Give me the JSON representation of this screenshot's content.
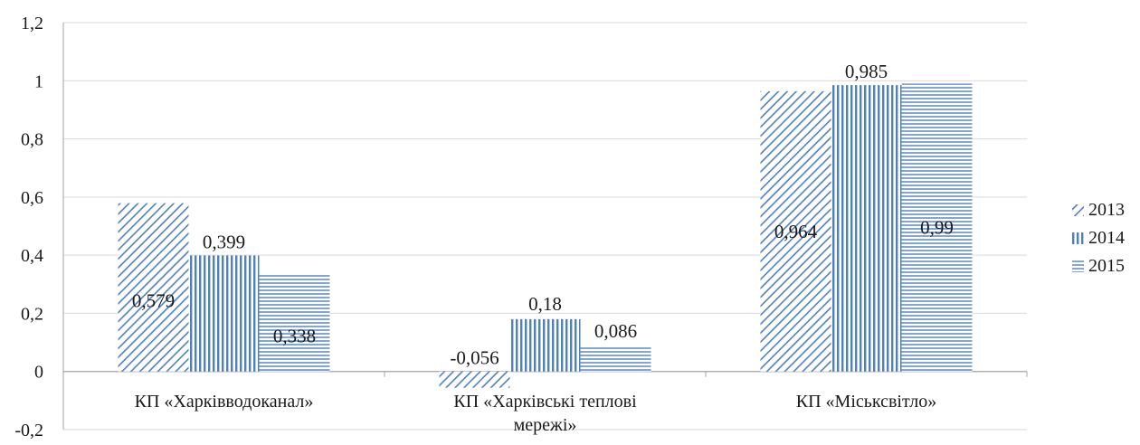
{
  "chart_data": {
    "type": "bar",
    "categories": [
      "КП «Харківводоканал»",
      "КП «Харківські теплові мережі»",
      "КП «Міськсвітло»"
    ],
    "series": [
      {
        "name": "2013",
        "values": [
          0.579,
          -0.056,
          0.964
        ],
        "labels": [
          "0,579",
          "-0,056",
          "0,964"
        ],
        "pattern": "diagonal"
      },
      {
        "name": "2014",
        "values": [
          0.399,
          0.18,
          0.985
        ],
        "labels": [
          "0,399",
          "0,18",
          "0,985"
        ],
        "pattern": "vertical"
      },
      {
        "name": "2015",
        "values": [
          0.338,
          0.086,
          0.99
        ],
        "labels": [
          "0,338",
          "0,086",
          "0,99"
        ],
        "pattern": "horizontal"
      }
    ],
    "ylim": [
      -0.2,
      1.2
    ],
    "yticks": [
      -0.2,
      0,
      0.2,
      0.4,
      0.6,
      0.8,
      1,
      1.2
    ],
    "ytick_labels": [
      "-0,2",
      "0",
      "0,2",
      "0,4",
      "0,6",
      "0,8",
      "1",
      "1,2"
    ],
    "grid": true,
    "legend_position": "right",
    "colors": {
      "bar": "#4f81bd",
      "grid": "#d9d9d9",
      "axis": "#a6a6a6",
      "text": "#1a1a1a"
    }
  }
}
